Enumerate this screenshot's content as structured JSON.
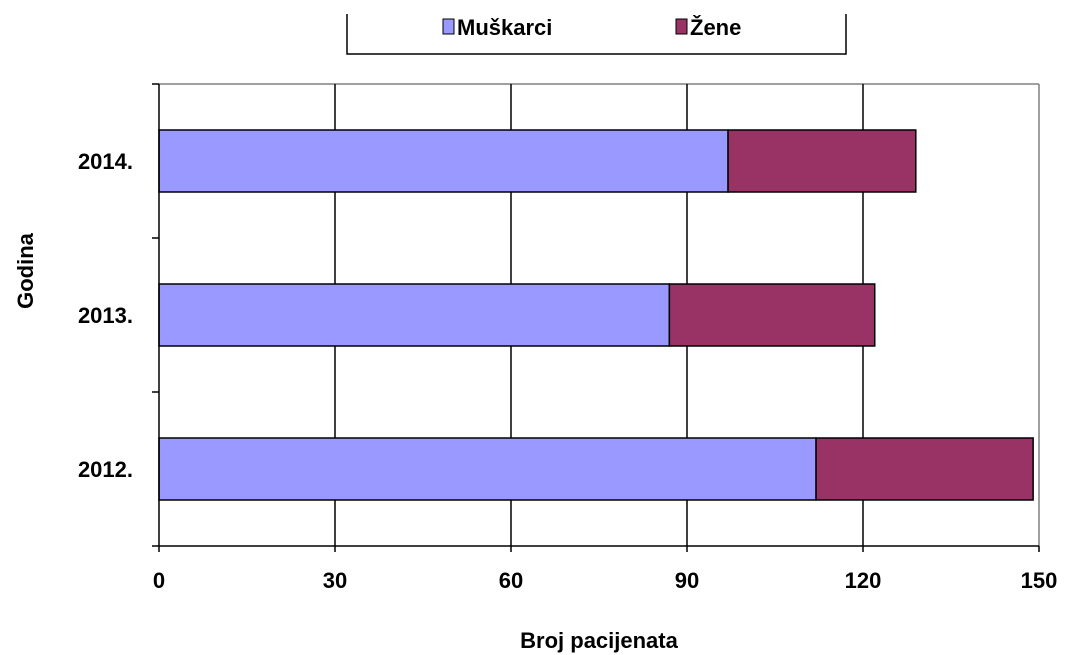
{
  "chart_data": {
    "type": "bar",
    "orientation": "horizontal",
    "stacked": true,
    "categories": [
      "2012.",
      "2013.",
      "2014."
    ],
    "series": [
      {
        "name": "Muškarci",
        "values": [
          112,
          87,
          97
        ],
        "color": "#9999ff"
      },
      {
        "name": "Žene",
        "values": [
          37,
          35,
          32
        ],
        "color": "#993366"
      }
    ],
    "xlabel": "Broj pacijenata",
    "ylabel": "Godina",
    "xlim": [
      0,
      150
    ],
    "xticks": [
      "0",
      "30",
      "60",
      "90",
      "120",
      "150"
    ],
    "grid": "vertical",
    "legend": "top-center"
  }
}
